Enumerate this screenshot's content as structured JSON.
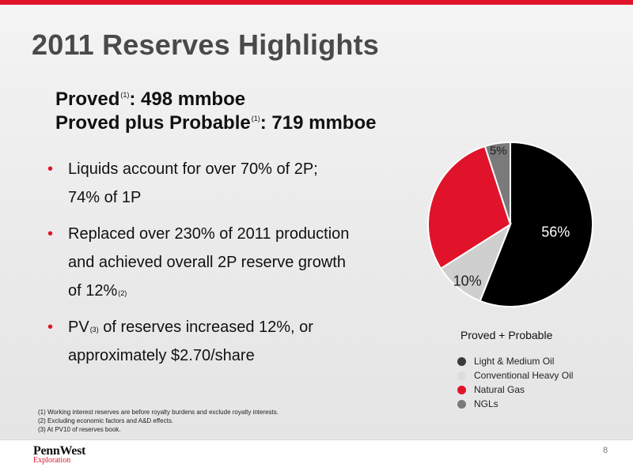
{
  "slide": {
    "title": "2011 Reserves Highlights",
    "page_number": "8"
  },
  "headline": {
    "line1_label": "Proved",
    "line1_fn": "(1)",
    "line1_value": ": 498 mmboe",
    "line2_label": "Proved plus Probable",
    "line2_fn": "(1)",
    "line2_value": ": 719 mmboe"
  },
  "bullets": [
    {
      "marker": "•",
      "text": "Liquids account for over 70% of 2P;",
      "text2": "74% of 1P"
    },
    {
      "marker": "•",
      "text": "Replaced over 230% of 2011 production",
      "text2": "and achieved overall 2P reserve growth",
      "text3": "of 12%",
      "fn": "(2)"
    },
    {
      "marker": "•",
      "pre": "PV",
      "fn": "(3)",
      "text": " of reserves increased 12%, or",
      "text2": "approximately $2.70/share"
    }
  ],
  "footnotes": [
    "(1)  Working interest reserves are before royalty burdens and exclude royalty interests.",
    "(2)  Excluding economic factors and A&D effects.",
    "(3)  At PV10 of reserves book."
  ],
  "logo": {
    "main": "PennWest",
    "sub": "Exploration"
  },
  "colors": {
    "accent": "#e0132b",
    "light_medium_oil": "#000000",
    "conventional_heavy_oil": "#cfcfcf",
    "natural_gas": "#e0132b",
    "ngls": "#7a7a7a"
  },
  "chart_data": {
    "type": "pie",
    "title": "Proved + Probable",
    "categories": [
      "Light & Medium Oil",
      "Conventional Heavy Oil",
      "Natural Gas",
      "NGLs"
    ],
    "values": [
      56,
      10,
      29,
      5
    ],
    "labels": [
      "56%",
      "10%",
      "29%",
      "5%"
    ],
    "colors": [
      "#000000",
      "#cfcfcf",
      "#e0132b",
      "#7a7a7a"
    ],
    "legend_position": "bottom"
  }
}
